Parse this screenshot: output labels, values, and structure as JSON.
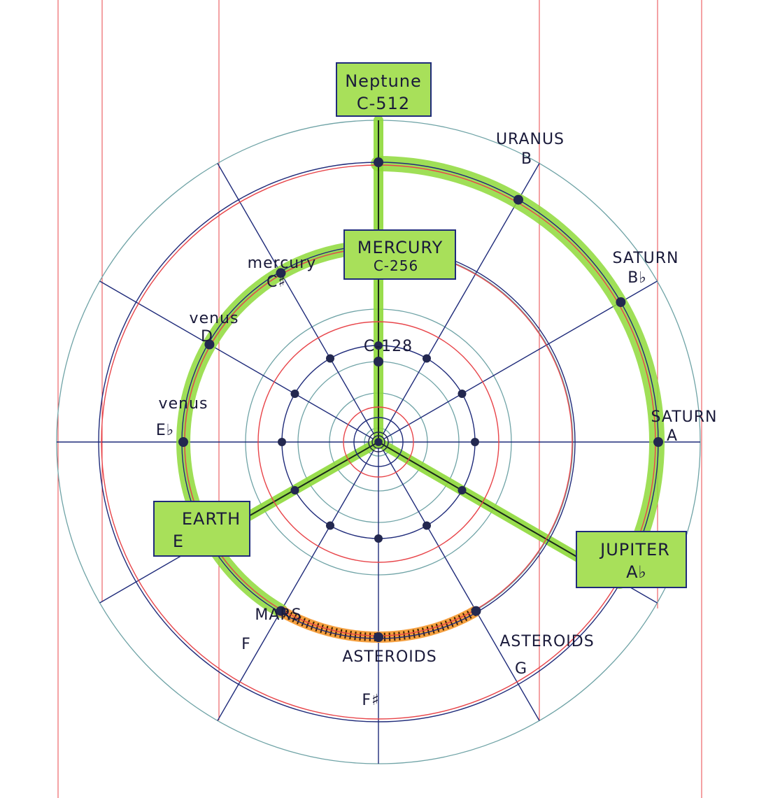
{
  "diagram": {
    "colors": {
      "green": "#7cd321",
      "green_light": "#a8e05a",
      "orange": "#f5a040",
      "navy": "#1f2b7a",
      "dot": "#232850",
      "red_line": "#e8454a",
      "teal_line": "#6fa3a6"
    },
    "boxed_labels": {
      "neptune": {
        "name": "Neptune",
        "note": "C-512"
      },
      "mercury_top": {
        "name": "MERCURY",
        "note": "C-256"
      },
      "earth": {
        "name": "EARTH",
        "note": "E"
      },
      "jupiter": {
        "name": "JUPITER",
        "note": "A♭"
      }
    },
    "labels": {
      "uranus": {
        "name": "URANUS",
        "note": "B"
      },
      "saturn_upper": {
        "name": "SATURN",
        "note": "B♭"
      },
      "saturn_lower": {
        "name": "SATURN",
        "note": "A"
      },
      "mercury_left": {
        "name": "mercury",
        "note": "C♯"
      },
      "venus_upper": {
        "name": "venus",
        "note": "D"
      },
      "venus_lower": {
        "name": "venus",
        "note": "E♭"
      },
      "mars": {
        "name": "MARS",
        "note": "F"
      },
      "asteroids_center": {
        "name": "ASTEROIDS",
        "note": "F♯"
      },
      "asteroids_right": {
        "name": "ASTEROIDS",
        "note": "G"
      },
      "center_note": "C-128"
    }
  }
}
